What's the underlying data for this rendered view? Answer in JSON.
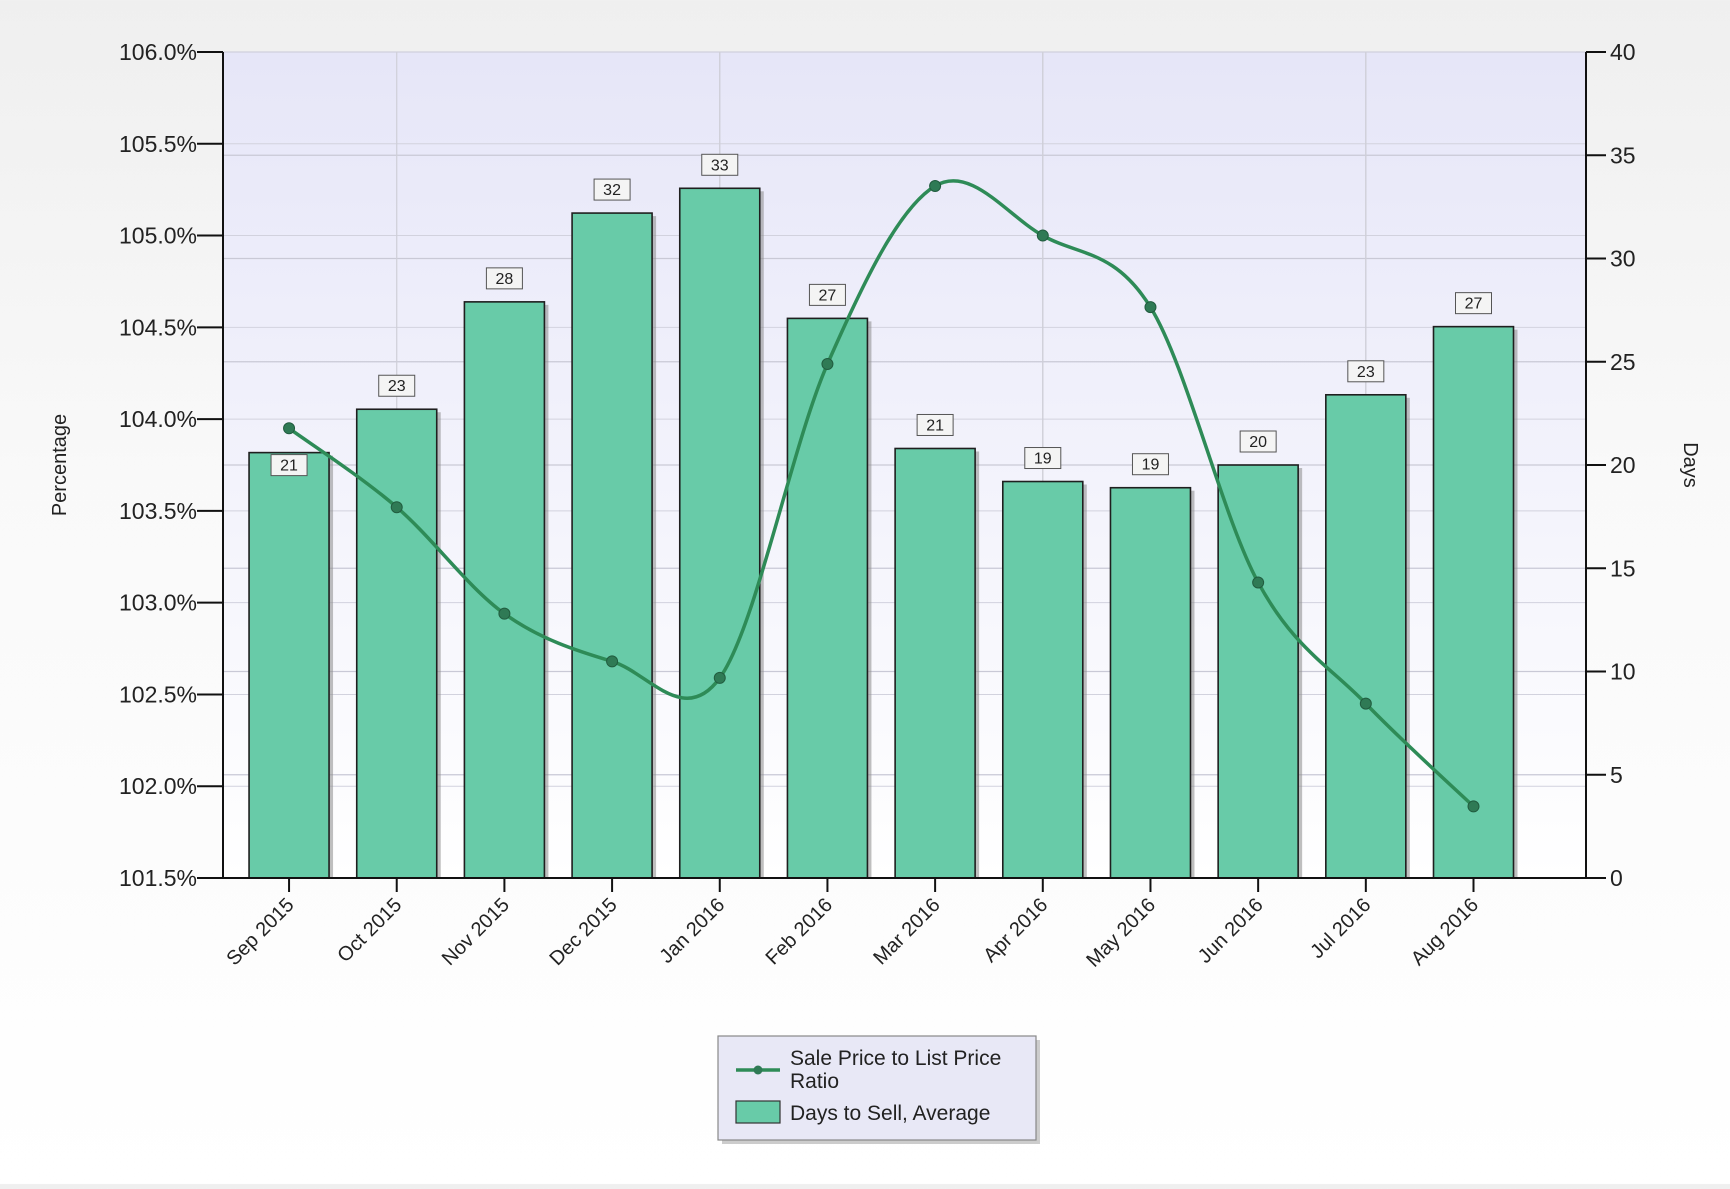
{
  "chart_data": {
    "type": "bar",
    "categories": [
      "Sep 2015",
      "Oct 2015",
      "Nov 2015",
      "Dec 2015",
      "Jan 2016",
      "Feb 2016",
      "Mar 2016",
      "Apr 2016",
      "May 2016",
      "Jun 2016",
      "Jul 2016",
      "Aug 2016"
    ],
    "series": [
      {
        "name": "Days to Sell, Average",
        "type": "bar",
        "axis": "right",
        "values": [
          20.6,
          22.7,
          27.9,
          32.2,
          33.4,
          27.1,
          20.8,
          19.2,
          18.9,
          20.0,
          23.4,
          26.7
        ],
        "labels": [
          "21",
          "23",
          "28",
          "32",
          "33",
          "27",
          "21",
          "19",
          "19",
          "20",
          "23",
          "27"
        ],
        "color": "#68cba8"
      },
      {
        "name": "Sale Price to List Price Ratio",
        "type": "line",
        "axis": "left",
        "values": [
          103.95,
          103.52,
          102.94,
          102.68,
          102.59,
          104.3,
          105.27,
          105.0,
          104.61,
          103.11,
          102.45,
          101.89
        ],
        "color": "#2e8b57"
      }
    ],
    "left_axis": {
      "title": "Percentage",
      "range": [
        101.5,
        106.0
      ],
      "ticks": [
        "106.0%",
        "105.5%",
        "105.0%",
        "104.5%",
        "104.0%",
        "103.5%",
        "103.0%",
        "102.5%",
        "102.0%",
        "101.5%"
      ]
    },
    "right_axis": {
      "title": "Days",
      "range": [
        0,
        40
      ],
      "ticks": [
        "40",
        "35",
        "30",
        "25",
        "20",
        "15",
        "10",
        "5",
        "0"
      ]
    },
    "grid": true,
    "legend_position": "bottom-center",
    "plot_background": "#e9e9f8"
  }
}
